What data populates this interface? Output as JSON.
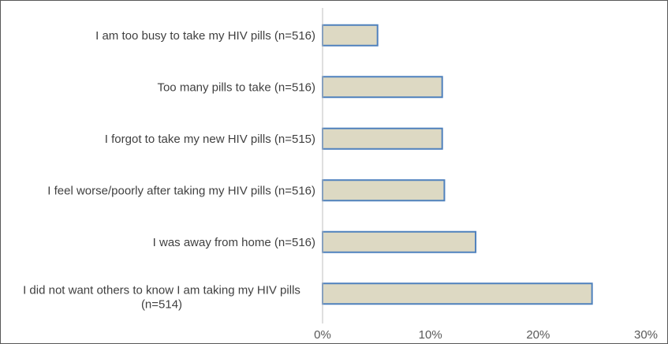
{
  "chart_data": {
    "type": "bar",
    "orientation": "horizontal",
    "categories": [
      "I am too busy to take my HIV pills (n=516)",
      "Too many pills to take (n=516)",
      "I forgot to take my new HIV pills (n=515)",
      "I feel worse/poorly after taking my HIV pills (n=516)",
      "I was away from home (n=516)",
      "I did not want others to know I am taking my HIV pills (n=514)"
    ],
    "category_lines": [
      [
        "I am too busy to take my HIV pills (n=516)"
      ],
      [
        "Too many pills to take (n=516)"
      ],
      [
        "I forgot to take my new HIV pills (n=515)"
      ],
      [
        "I feel worse/poorly after taking my HIV pills (n=516)"
      ],
      [
        "I was away from home (n=516)"
      ],
      [
        "I did not want others to know I am taking my HIV pills",
        "(n=514)"
      ]
    ],
    "values": [
      5.1,
      11.1,
      11.1,
      11.3,
      14.2,
      25.0
    ],
    "xlim": [
      0,
      30
    ],
    "xticks": [
      "0%",
      "10%",
      "20%",
      "30%"
    ],
    "xtick_values": [
      0,
      10,
      20,
      30
    ],
    "title": "",
    "xlabel": "",
    "ylabel": "",
    "grid": false,
    "legend": "none",
    "bar_fill": "#ddd9c3",
    "bar_stroke": "#4f81bd",
    "axis_color": "#bfbfbf"
  }
}
